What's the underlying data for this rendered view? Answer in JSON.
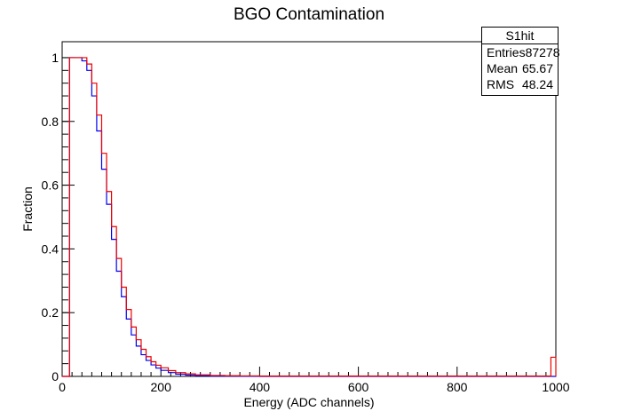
{
  "title": "BGO Contamination",
  "stats": {
    "name": "S1hit",
    "rows": [
      {
        "label": "Entries",
        "value": "87278"
      },
      {
        "label": "Mean",
        "value": "65.67"
      },
      {
        "label": "RMS",
        "value": "48.24"
      }
    ]
  },
  "colors": {
    "blue": "#0000ee",
    "red": "#ee0000",
    "axis": "#000000"
  },
  "chart_data": {
    "type": "line",
    "title": "BGO Contamination",
    "xlabel": "Energy (ADC channels)",
    "ylabel": "Fraction",
    "xlim": [
      0,
      1000
    ],
    "ylim": [
      0,
      1.05
    ],
    "xticks": [
      0,
      200,
      400,
      600,
      800,
      1000
    ],
    "yticks": [
      0,
      0.2,
      0.4,
      0.6,
      0.8,
      1
    ],
    "grid": false,
    "series": [
      {
        "color": "blue",
        "x": [
          0,
          10,
          15,
          20,
          30,
          40,
          50,
          60,
          70,
          80,
          90,
          100,
          110,
          120,
          130,
          140,
          150,
          160,
          170,
          180,
          190,
          200,
          215,
          230,
          250,
          270,
          300,
          330,
          360,
          400,
          500,
          700,
          1000
        ],
        "y": [
          0,
          0,
          1.0,
          1.0,
          1.0,
          0.99,
          0.96,
          0.88,
          0.77,
          0.65,
          0.54,
          0.43,
          0.33,
          0.25,
          0.18,
          0.13,
          0.095,
          0.068,
          0.05,
          0.036,
          0.026,
          0.019,
          0.012,
          0.007,
          0.004,
          0.002,
          0.001,
          0.0005,
          0.0002,
          0,
          0,
          0,
          0
        ]
      },
      {
        "color": "red",
        "x": [
          0,
          10,
          15,
          20,
          30,
          40,
          50,
          60,
          70,
          80,
          90,
          100,
          110,
          120,
          130,
          140,
          150,
          160,
          170,
          180,
          190,
          200,
          215,
          230,
          250,
          270,
          300,
          330,
          360,
          400,
          500,
          700,
          985,
          990,
          1000
        ],
        "y": [
          0,
          0,
          1.0,
          1.0,
          1.0,
          1.0,
          0.98,
          0.92,
          0.82,
          0.7,
          0.58,
          0.47,
          0.37,
          0.28,
          0.21,
          0.155,
          0.115,
          0.085,
          0.062,
          0.046,
          0.035,
          0.027,
          0.018,
          0.012,
          0.008,
          0.005,
          0.003,
          0.002,
          0.0015,
          0.001,
          0.001,
          0.001,
          0.001,
          0.06,
          0.0
        ]
      }
    ]
  }
}
